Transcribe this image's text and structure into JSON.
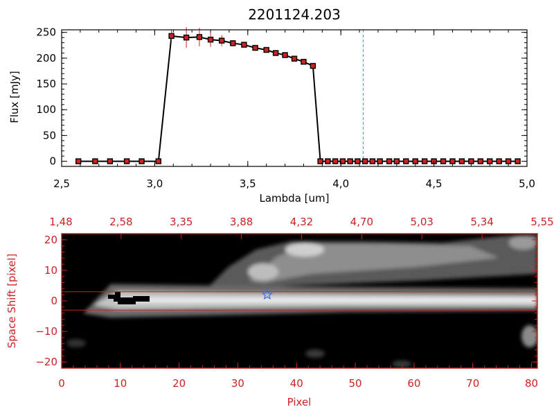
{
  "chart_data": [
    {
      "type": "line",
      "title": "2201124.203",
      "xlabel": "Lambda [um]",
      "ylabel": "Flux [mJy]",
      "xlim": [
        2.5,
        5.0
      ],
      "ylim": [
        -10,
        255
      ],
      "x_ticks": [
        "2.5",
        "3.0",
        "3.5",
        "4.0",
        "4.5",
        "5.0"
      ],
      "y_ticks": [
        "0",
        "50",
        "100",
        "150",
        "200",
        "250"
      ],
      "series": [
        {
          "color": "#000000",
          "marker_color": "#cc2222",
          "x": [
            2.59,
            2.68,
            2.76,
            2.85,
            2.93,
            3.02,
            3.09,
            3.17,
            3.24,
            3.3,
            3.36,
            3.42,
            3.48,
            3.54,
            3.6,
            3.65,
            3.7,
            3.75,
            3.8,
            3.85,
            3.89,
            3.93,
            3.97,
            4.01,
            4.05,
            4.09,
            4.13,
            4.17,
            4.21,
            4.26,
            4.3,
            4.35,
            4.4,
            4.45,
            4.5,
            4.55,
            4.6,
            4.65,
            4.7,
            4.75,
            4.8,
            4.85,
            4.9,
            4.95
          ],
          "y": [
            0,
            0,
            0,
            0,
            0,
            0,
            243,
            240,
            241,
            236,
            234,
            229,
            226,
            220,
            216,
            210,
            206,
            199,
            193,
            185,
            0,
            0,
            0,
            0,
            0,
            0,
            0,
            0,
            0,
            0,
            0,
            0,
            0,
            0,
            0,
            0,
            0,
            0,
            0,
            0,
            0,
            0,
            0,
            0
          ],
          "yerr": [
            0,
            0,
            0,
            0,
            0,
            0,
            12,
            20,
            18,
            14,
            11,
            6,
            4,
            3,
            3,
            3,
            3,
            3,
            3,
            3,
            0,
            0,
            0,
            0,
            0,
            0,
            0,
            0,
            0,
            0,
            0,
            0,
            0,
            0,
            0,
            0,
            0,
            0,
            0,
            0,
            0,
            0,
            0,
            0
          ]
        }
      ],
      "annotations": [
        {
          "type": "vline",
          "x": 4.12,
          "style": "dashed",
          "color": "#2aa0c8"
        }
      ],
      "grid": false
    },
    {
      "type": "heatmap",
      "xlabel": "Pixel",
      "ylabel": "Space Shift [pixel]",
      "xlim": [
        0,
        81
      ],
      "ylim": [
        -22,
        22
      ],
      "x_ticks": [
        "0",
        "10",
        "20",
        "30",
        "40",
        "50",
        "60",
        "70",
        "80"
      ],
      "y_ticks": [
        "-20",
        "-10",
        "0",
        "10",
        "20"
      ],
      "top_axis_ticks": [
        "1.48",
        "2.58",
        "3.35",
        "3.88",
        "4.32",
        "4.70",
        "5.03",
        "5.34",
        "5.55"
      ],
      "colormap": "grayscale",
      "axis_color": "#cc2222",
      "extraction_lines": [
        3,
        -3
      ],
      "marker": {
        "shape": "star",
        "x": 35,
        "y": 2,
        "color": "#3a6fe0"
      },
      "grid": false
    }
  ]
}
